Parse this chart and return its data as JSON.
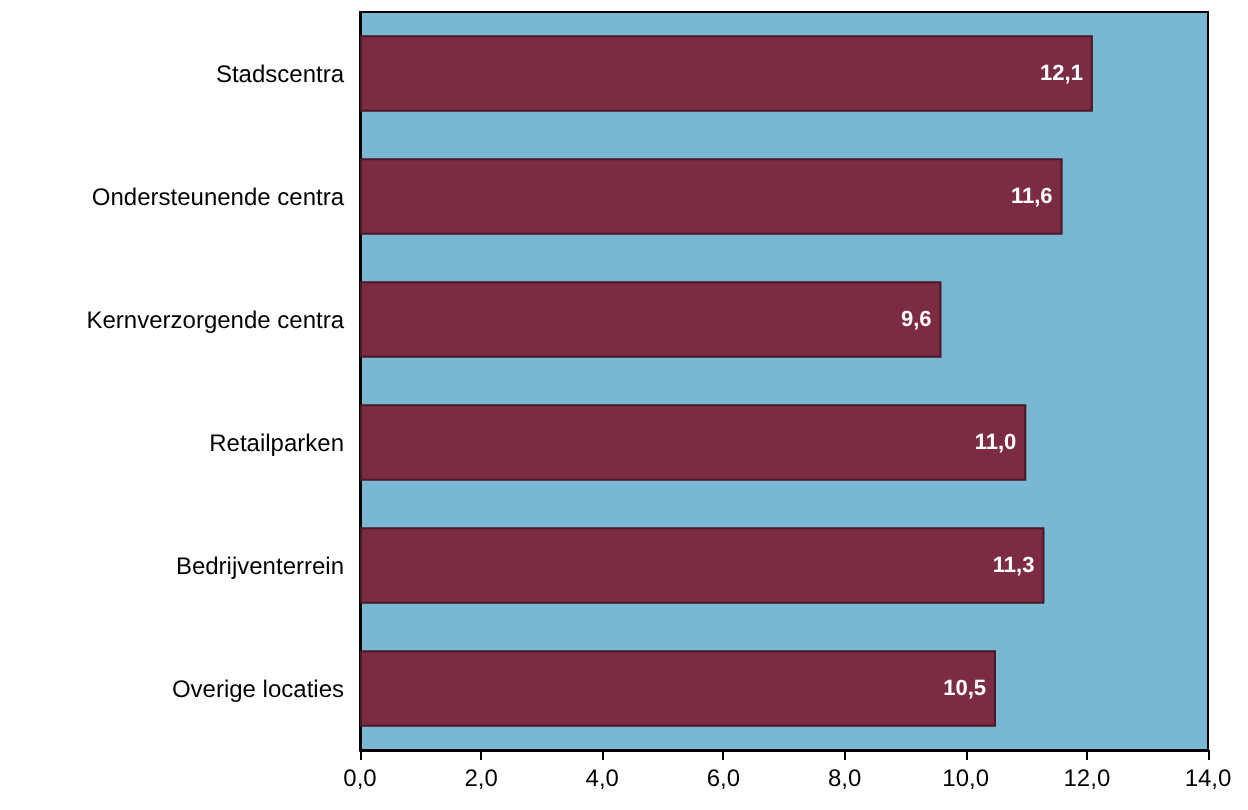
{
  "chart_data": {
    "type": "bar",
    "orientation": "horizontal",
    "categories": [
      "Stadscentra",
      "Ondersteunende centra",
      "Kernverzorgende centra",
      "Retailparken",
      "Bedrijventerrein",
      "Overige locaties"
    ],
    "values": [
      12.1,
      11.6,
      9.6,
      11.0,
      11.3,
      10.5
    ],
    "value_labels": [
      "12,1",
      "11,6",
      "9,6",
      "11,0",
      "11,3",
      "10,5"
    ],
    "color": "#7b2b42",
    "xlim": [
      0,
      14
    ],
    "xticks": [
      {
        "value": 0,
        "label": "0,0"
      },
      {
        "value": 2,
        "label": "2,0"
      },
      {
        "value": 4,
        "label": "4,0"
      },
      {
        "value": 6,
        "label": "6,0"
      },
      {
        "value": 8,
        "label": "8,0"
      },
      {
        "value": 10,
        "label": "10,0"
      },
      {
        "value": 12,
        "label": "12,0"
      },
      {
        "value": 14,
        "label": "14,0"
      }
    ],
    "grid": false
  }
}
